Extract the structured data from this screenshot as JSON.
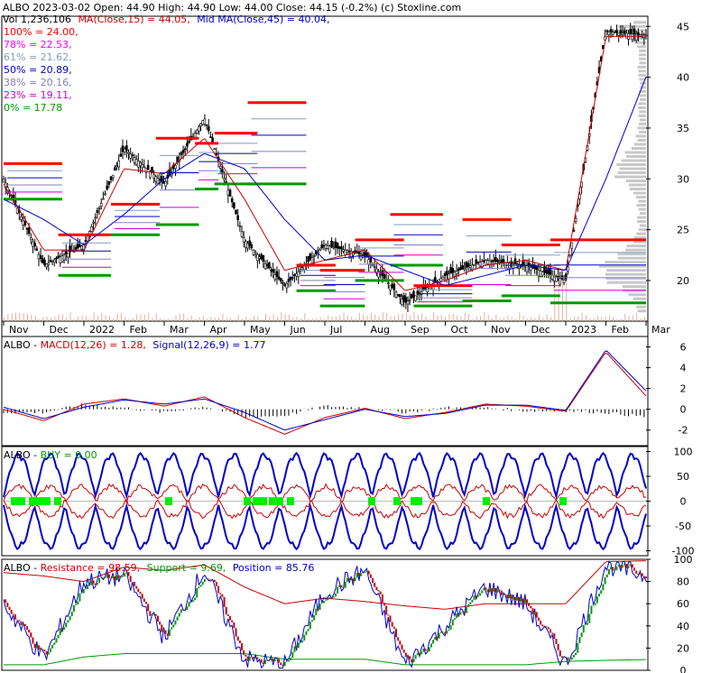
{
  "header": {
    "line1": "ALBO  2023-03-02 Open: 44.90  High: 44.90  Low: 44.00  Close: 44.15 (-0.2%)  (c) Stoxline.com",
    "vol": "Vol 1,236,106",
    "ma15": "MA(Close,15) = 44.05,",
    "ma45": "Mid MA(Close,45) = 40.04,"
  },
  "fib_levels": [
    {
      "label": "100% = 24.00,",
      "color": "#ff0000"
    },
    {
      "label": "78% = 22.53,",
      "color": "#ff00ff"
    },
    {
      "label": "61% = 21.62,",
      "color": "#7f9fbf"
    },
    {
      "label": "50% = 20.89,",
      "color": "#0000cc"
    },
    {
      "label": "38% = 20.16,",
      "color": "#8080c0"
    },
    {
      "label": "23% = 19.11,",
      "color": "#cc00cc"
    },
    {
      "label": "0% = 17.78",
      "color": "#009900"
    }
  ],
  "x_axis_labels": [
    "Nov",
    "Dec",
    "2022",
    "Feb",
    "Mar",
    "Apr",
    "May",
    "Jun",
    "Jul",
    "Aug",
    "Sep",
    "Oct",
    "Nov",
    "Dec",
    "2023",
    "Feb",
    "Mar"
  ],
  "macd_title": {
    "prefix": "ALBO - ",
    "macd": "MACD(12,26) = 1.28,",
    "signal": "Signal(12,26,9) = 1.77"
  },
  "buy_title": {
    "prefix": "ALBO - ",
    "buy": "BUY = 0.00"
  },
  "res_title": {
    "prefix": "ALBO - ",
    "resistance": "Resistance = 98.59,",
    "support": "Support = 9.69,",
    "position": "Position = 85.76"
  },
  "chart_data": [
    {
      "type": "candlestick",
      "panel": "price",
      "ylim": [
        16,
        46
      ],
      "yticks": [
        20,
        25,
        30,
        35,
        40,
        45
      ],
      "x": [
        "Nov",
        "Dec",
        "2022",
        "Feb",
        "Mar",
        "Apr",
        "May",
        "Jun",
        "Jul",
        "Aug",
        "Sep",
        "Oct",
        "Nov",
        "Dec",
        "2023",
        "Feb",
        "Mar"
      ],
      "close": [
        30.0,
        21.5,
        23.5,
        33.0,
        29.5,
        36.0,
        24.0,
        19.5,
        23.5,
        22.5,
        17.8,
        20.5,
        22.0,
        21.5,
        20.0,
        44.5,
        44.15
      ],
      "series": [
        {
          "name": "MA(Close,15)",
          "color": "#cc0000",
          "values": [
            29.5,
            23.0,
            23.0,
            31.0,
            30.5,
            34.0,
            28.0,
            21.0,
            22.0,
            23.0,
            19.0,
            20.0,
            21.5,
            22.0,
            21.0,
            44.0,
            44.05
          ]
        },
        {
          "name": "Mid MA(Close,45)",
          "color": "#0000cc",
          "values": [
            28.0,
            26.0,
            23.5,
            26.5,
            30.0,
            32.5,
            31.0,
            26.0,
            22.0,
            22.5,
            21.0,
            19.5,
            20.5,
            21.5,
            21.0,
            30.0,
            40.04
          ]
        }
      ]
    },
    {
      "type": "line",
      "panel": "macd",
      "ylim": [
        -3.5,
        7
      ],
      "yticks": [
        -2,
        0,
        2,
        4,
        6
      ],
      "series": [
        {
          "name": "MACD(12,26)",
          "color": "#cc0000",
          "values": [
            0.0,
            -1.1,
            0.5,
            1.0,
            0.3,
            1.2,
            -0.8,
            -2.4,
            -0.8,
            0.1,
            -0.9,
            -0.3,
            0.5,
            0.3,
            -0.2,
            5.5,
            1.28
          ]
        },
        {
          "name": "Signal(12,26,9)",
          "color": "#0000cc",
          "values": [
            0.2,
            -0.9,
            0.2,
            0.9,
            0.5,
            1.0,
            -0.3,
            -2.0,
            -1.0,
            0.0,
            -0.7,
            -0.4,
            0.4,
            0.4,
            -0.1,
            5.7,
            1.77
          ]
        }
      ]
    },
    {
      "type": "line",
      "panel": "buy",
      "ylim": [
        -110,
        110
      ],
      "yticks": [
        -100,
        -50,
        0,
        50,
        100
      ],
      "series": [
        {
          "name": "BUY",
          "color": "#0000cc",
          "values": [
            0,
            0.0
          ]
        }
      ]
    },
    {
      "type": "line",
      "panel": "resistance",
      "ylim": [
        0,
        100
      ],
      "yticks": [
        0,
        20,
        40,
        60,
        80,
        100
      ],
      "series": [
        {
          "name": "Resistance",
          "color": "#cc0000",
          "values": [
            88,
            85,
            80,
            93,
            90,
            95,
            75,
            60,
            65,
            62,
            58,
            55,
            60,
            60,
            60,
            98,
            98.59
          ]
        },
        {
          "name": "Support",
          "color": "#009900",
          "values": [
            5,
            5,
            12,
            15,
            15,
            15,
            15,
            10,
            10,
            10,
            5,
            5,
            5,
            5,
            8,
            9,
            9.69
          ]
        },
        {
          "name": "Position",
          "color": "#0000cc",
          "values": [
            60,
            10,
            80,
            85,
            30,
            90,
            10,
            5,
            70,
            90,
            5,
            40,
            75,
            60,
            5,
            95,
            85.76
          ]
        }
      ]
    }
  ]
}
